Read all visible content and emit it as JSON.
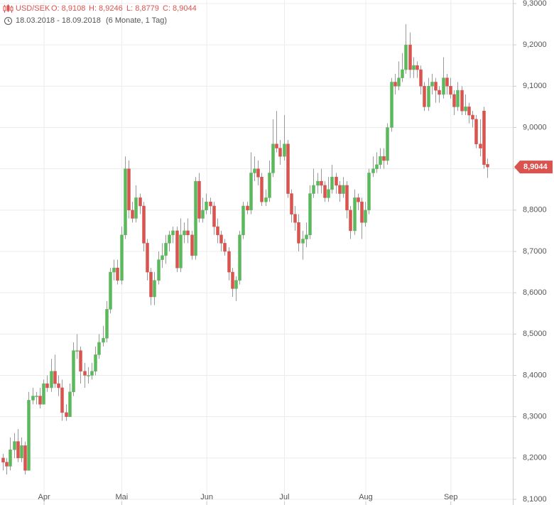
{
  "chart_data": {
    "type": "candlestick",
    "header": {
      "symbol": "USD/SEK",
      "open": "O: 8,9108",
      "high": "H: 8,9246",
      "low": "L: 8,8779",
      "close": "C: 8,9044",
      "range": "18.03.2018 - 18.09.2018",
      "period": "(6 Monate, 1 Tag)"
    },
    "categories": [
      null,
      null,
      null,
      null,
      null,
      null,
      null,
      null,
      null,
      null,
      "Apr",
      null,
      null,
      null,
      null,
      null,
      null,
      null,
      null,
      null,
      null,
      null,
      null,
      null,
      null,
      null,
      null,
      null,
      null,
      null,
      null,
      "Mai",
      null,
      null,
      null,
      null,
      null,
      null,
      null,
      null,
      null,
      null,
      null,
      null,
      null,
      null,
      null,
      null,
      null,
      null,
      null,
      null,
      null,
      null,
      "Jun",
      null,
      null,
      null,
      null,
      null,
      null,
      null,
      null,
      null,
      null,
      null,
      null,
      null,
      null,
      null,
      null,
      null,
      null,
      null,
      null,
      "Jul",
      null,
      null,
      null,
      null,
      null,
      null,
      null,
      null,
      null,
      null,
      null,
      null,
      null,
      null,
      null,
      null,
      null,
      null,
      null,
      null,
      null,
      "Aug",
      null,
      null,
      null,
      null,
      null,
      null,
      null,
      null,
      null,
      null,
      null,
      null,
      null,
      null,
      null,
      null,
      null,
      null,
      null,
      null,
      null,
      null,
      "Sep",
      null,
      null,
      null,
      null,
      null,
      null,
      null,
      null,
      null,
      null,
      null
    ],
    "open": [
      8.2,
      8.19,
      8.18,
      8.22,
      8.24,
      8.2,
      8.23,
      8.17,
      8.34,
      8.35,
      8.35,
      8.33,
      8.38,
      8.37,
      8.41,
      8.38,
      8.37,
      8.31,
      8.3,
      8.36,
      8.46,
      8.46,
      8.41,
      8.4,
      8.4,
      8.41,
      8.45,
      8.48,
      8.49,
      8.56,
      8.65,
      8.66,
      8.63,
      8.74,
      8.9,
      8.8,
      8.78,
      8.83,
      8.81,
      8.72,
      8.65,
      8.59,
      8.63,
      8.68,
      8.69,
      8.72,
      8.74,
      8.75,
      8.66,
      8.74,
      8.75,
      8.74,
      8.69,
      8.87,
      8.78,
      8.8,
      8.82,
      8.81,
      8.76,
      8.74,
      8.72,
      8.7,
      8.65,
      8.61,
      8.63,
      8.74,
      8.81,
      8.8,
      8.89,
      8.9,
      8.88,
      8.82,
      8.83,
      8.89,
      8.96,
      8.95,
      8.93,
      8.96,
      8.84,
      8.79,
      8.77,
      8.72,
      8.73,
      8.74,
      8.84,
      8.86,
      8.87,
      8.86,
      8.83,
      8.85,
      8.88,
      8.86,
      8.84,
      8.86,
      8.8,
      8.75,
      8.83,
      8.82,
      8.77,
      8.8,
      8.89,
      8.9,
      8.91,
      8.93,
      8.92,
      9.0,
      9.11,
      9.1,
      9.12,
      9.14,
      9.2,
      9.14,
      9.15,
      9.14,
      9.1,
      9.05,
      9.1,
      9.11,
      9.09,
      9.08,
      9.12,
      9.1,
      9.08,
      9.05,
      9.09,
      9.04,
      9.05,
      9.03,
      9.02,
      8.96,
      9.04,
      8.9108
    ],
    "high": [
      8.21,
      8.2,
      8.25,
      8.26,
      8.27,
      8.25,
      8.24,
      8.36,
      8.37,
      8.36,
      8.37,
      8.39,
      8.4,
      8.44,
      8.45,
      8.4,
      8.39,
      8.33,
      8.38,
      8.48,
      8.5,
      8.47,
      8.43,
      8.42,
      8.43,
      8.47,
      8.5,
      8.52,
      8.58,
      8.66,
      8.68,
      8.68,
      8.76,
      8.93,
      8.92,
      8.82,
      8.86,
      8.84,
      8.82,
      8.73,
      8.66,
      8.65,
      8.7,
      8.72,
      8.74,
      8.75,
      8.76,
      8.76,
      8.78,
      8.77,
      8.78,
      8.75,
      8.88,
      8.89,
      8.83,
      8.84,
      8.83,
      8.82,
      8.78,
      8.75,
      8.73,
      8.71,
      8.66,
      8.64,
      8.75,
      8.82,
      8.82,
      8.94,
      8.93,
      8.92,
      8.89,
      8.85,
      8.92,
      9.02,
      9.04,
      8.97,
      9.03,
      8.97,
      8.85,
      8.81,
      8.79,
      8.75,
      8.77,
      8.86,
      8.9,
      8.89,
      8.9,
      8.87,
      8.88,
      8.91,
      8.89,
      8.87,
      8.88,
      8.87,
      8.81,
      8.85,
      8.84,
      8.83,
      8.82,
      8.9,
      8.93,
      8.94,
      8.95,
      8.95,
      9.01,
      9.12,
      9.13,
      9.16,
      9.18,
      9.25,
      9.23,
      9.17,
      9.16,
      9.15,
      9.11,
      9.12,
      9.13,
      9.12,
      9.1,
      9.17,
      9.13,
      9.12,
      9.09,
      9.11,
      9.1,
      9.08,
      9.06,
      9.04,
      9.03,
      9.02,
      9.05,
      8.9246
    ],
    "low": [
      8.17,
      8.16,
      8.17,
      8.2,
      8.19,
      8.19,
      8.16,
      8.17,
      8.33,
      8.33,
      8.32,
      8.33,
      8.36,
      8.36,
      8.37,
      8.35,
      8.29,
      8.29,
      8.3,
      8.35,
      8.44,
      8.38,
      8.37,
      8.38,
      8.39,
      8.4,
      8.44,
      8.47,
      8.48,
      8.55,
      8.63,
      8.62,
      8.62,
      8.73,
      8.78,
      8.77,
      8.77,
      8.79,
      8.7,
      8.63,
      8.57,
      8.57,
      8.62,
      8.66,
      8.67,
      8.7,
      8.72,
      8.65,
      8.65,
      8.72,
      8.72,
      8.68,
      8.68,
      8.77,
      8.77,
      8.79,
      8.79,
      8.74,
      8.72,
      8.7,
      8.69,
      8.63,
      8.59,
      8.58,
      8.62,
      8.73,
      8.79,
      8.79,
      8.87,
      8.86,
      8.81,
      8.81,
      8.82,
      8.88,
      8.94,
      8.91,
      8.92,
      8.83,
      8.77,
      8.75,
      8.7,
      8.68,
      8.71,
      8.73,
      8.83,
      8.84,
      8.84,
      8.82,
      8.82,
      8.84,
      8.84,
      8.82,
      8.83,
      8.78,
      8.73,
      8.74,
      8.8,
      8.73,
      8.76,
      8.79,
      8.88,
      8.89,
      8.9,
      8.9,
      8.91,
      8.99,
      9.08,
      9.09,
      9.11,
      9.13,
      9.12,
      9.12,
      9.12,
      9.08,
      9.04,
      9.04,
      9.08,
      9.06,
      9.06,
      9.07,
      9.08,
      9.07,
      9.03,
      9.04,
      9.03,
      9.03,
      9.01,
      9.0,
      8.95,
      8.93,
      8.9,
      8.8779
    ],
    "close": [
      8.19,
      8.18,
      8.22,
      8.24,
      8.2,
      8.23,
      8.17,
      8.34,
      8.35,
      8.35,
      8.33,
      8.38,
      8.37,
      8.41,
      8.38,
      8.37,
      8.31,
      8.3,
      8.36,
      8.46,
      8.46,
      8.41,
      8.4,
      8.4,
      8.41,
      8.45,
      8.48,
      8.49,
      8.56,
      8.65,
      8.66,
      8.63,
      8.74,
      8.9,
      8.8,
      8.78,
      8.83,
      8.81,
      8.72,
      8.65,
      8.59,
      8.63,
      8.68,
      8.69,
      8.72,
      8.74,
      8.75,
      8.66,
      8.74,
      8.75,
      8.74,
      8.69,
      8.87,
      8.78,
      8.8,
      8.82,
      8.81,
      8.76,
      8.74,
      8.72,
      8.7,
      8.65,
      8.61,
      8.63,
      8.74,
      8.81,
      8.8,
      8.89,
      8.9,
      8.88,
      8.82,
      8.83,
      8.89,
      8.96,
      8.95,
      8.93,
      8.96,
      8.84,
      8.79,
      8.77,
      8.72,
      8.73,
      8.74,
      8.84,
      8.86,
      8.87,
      8.86,
      8.83,
      8.85,
      8.88,
      8.86,
      8.84,
      8.86,
      8.8,
      8.75,
      8.83,
      8.82,
      8.77,
      8.8,
      8.89,
      8.9,
      8.91,
      8.93,
      8.92,
      9.0,
      9.11,
      9.1,
      9.12,
      9.14,
      9.2,
      9.14,
      9.15,
      9.14,
      9.1,
      9.05,
      9.1,
      9.11,
      9.09,
      9.08,
      9.12,
      9.1,
      9.08,
      9.05,
      9.09,
      9.04,
      9.05,
      9.03,
      9.02,
      8.96,
      8.95,
      8.91,
      8.9044
    ],
    "up_color": "#5cb85c",
    "down_color": "#d9534f",
    "last_price": {
      "value": 8.9044,
      "label": "8,9044"
    },
    "ylim": [
      8.1,
      9.3
    ],
    "yticks": [
      {
        "value": 8.1,
        "label": "8,1000"
      },
      {
        "value": 8.2,
        "label": "8,2000"
      },
      {
        "value": 8.3,
        "label": "8,3000"
      },
      {
        "value": 8.4,
        "label": "8,4000"
      },
      {
        "value": 8.5,
        "label": "8,5000"
      },
      {
        "value": 8.6,
        "label": "8,6000"
      },
      {
        "value": 8.7,
        "label": "8,7000"
      },
      {
        "value": 8.8,
        "label": "8,8000"
      },
      {
        "value": 8.9,
        "label": "8,9000"
      },
      {
        "value": 9.0,
        "label": "9,0000"
      },
      {
        "value": 9.1,
        "label": "9,1000"
      },
      {
        "value": 9.2,
        "label": "9,2000"
      },
      {
        "value": 9.3,
        "label": "9,3000"
      }
    ],
    "grid": true
  }
}
